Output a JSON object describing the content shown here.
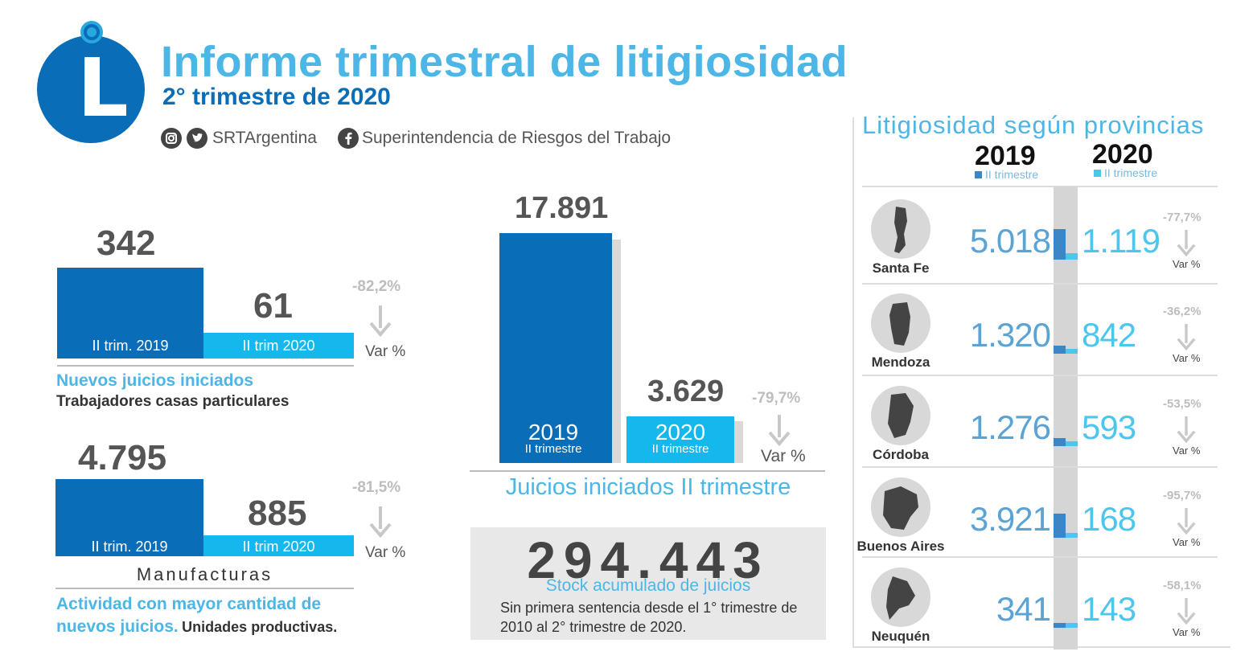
{
  "header": {
    "title": "Informe trimestral de litigiosidad",
    "subtitle": "2° trimestre de 2020",
    "logo_letter": "L",
    "social_handle": "SRTArgentina",
    "social_page": "Superintendencia de Riesgos del Trabajo",
    "icons": [
      "instagram-icon",
      "twitter-icon",
      "facebook-icon"
    ]
  },
  "colors": {
    "dark_blue": "#0a6db8",
    "light_blue": "#14b8ec",
    "title_blue": "#4cb6e6",
    "var_gray": "#bdbdbd"
  },
  "chart_data": [
    {
      "type": "bar",
      "id": "casas_particulares",
      "categories": [
        "II trim. 2019",
        "II trim 2020"
      ],
      "values": [
        342,
        61
      ],
      "value_labels": [
        "342",
        "61"
      ],
      "variation": "-82,2%",
      "variation_label": "Var %",
      "caption": "Nuevos juicios iniciados",
      "subcaption": "Trabajadores casas particulares"
    },
    {
      "type": "bar",
      "id": "manufacturas",
      "categories": [
        "II trim. 2019",
        "II trim 2020"
      ],
      "values": [
        4795,
        885
      ],
      "value_labels": [
        "4.795",
        "885"
      ],
      "variation": "-81,5%",
      "variation_label": "Var %",
      "sector": "Manufacturas",
      "caption_line1": "Actividad con mayor cantidad de",
      "caption_line2": "nuevos juicios.",
      "caption_dark": "Unidades productivas."
    },
    {
      "type": "bar",
      "id": "juicios_trimestre",
      "categories": [
        "2019",
        "2020"
      ],
      "category_sub": [
        "II trimestre",
        "II trimestre"
      ],
      "values": [
        17891,
        3629
      ],
      "value_labels": [
        "17.891",
        "3.629"
      ],
      "variation": "-79,7%",
      "variation_label": "Var %",
      "title": "Juicios iniciados II trimestre"
    },
    {
      "type": "bar",
      "id": "provincias",
      "title": "Litigiosidad según provincias",
      "series_headers": [
        "2019",
        "2020"
      ],
      "series_sub": [
        "II trimestre",
        "II trimestre"
      ],
      "rows": [
        {
          "province": "Santa Fe",
          "v2019": 5018,
          "v2020": 1119,
          "l2019": "5.018",
          "l2020": "1.119",
          "var": "-77,7%"
        },
        {
          "province": "Mendoza",
          "v2019": 1320,
          "v2020": 842,
          "l2019": "1.320",
          "l2020": "842",
          "var": "-36,2%"
        },
        {
          "province": "Córdoba",
          "v2019": 1276,
          "v2020": 593,
          "l2019": "1.276",
          "l2020": "593",
          "var": "-53,5%"
        },
        {
          "province": "Buenos Aires",
          "v2019": 3921,
          "v2020": 168,
          "l2019": "3.921",
          "l2020": "168",
          "var": "-95,7%"
        },
        {
          "province": "Neuquén",
          "v2019": 341,
          "v2020": 143,
          "l2019": "341",
          "l2020": "143",
          "var": "-58,1%"
        }
      ],
      "variation_label": "Var %"
    }
  ],
  "stock": {
    "value": "294.443",
    "label": "Stock acumulado de juicios",
    "note": "Sin primera sentencia desde el 1° trimestre de 2010 al  2° trimestre de 2020."
  }
}
